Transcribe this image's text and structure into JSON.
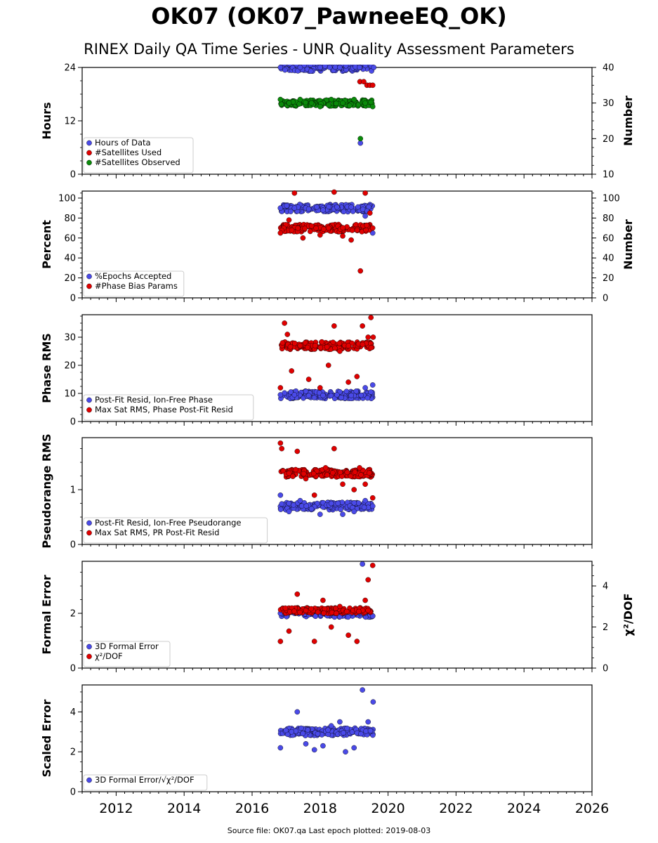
{
  "title": "OK07 (OK07_PawneeEQ_OK)",
  "subtitle": "RINEX Daily QA Time Series - UNR Quality Assessment Parameters",
  "footer": "Source file: OK07.qa Last epoch plotted: 2019-08-03",
  "colors": {
    "blue": "#4a4ae8",
    "red": "#e00000",
    "green": "#0a8a0a"
  },
  "chart_data": {
    "type": "scatter",
    "x_axis": {
      "range": [
        "2011-01-01",
        "2026-01-01"
      ],
      "tick_labels": [
        "2012",
        "2014",
        "2016",
        "2018",
        "2020",
        "2022",
        "2024",
        "2026"
      ]
    },
    "panels": [
      {
        "ylabel": "Hours",
        "ylim": [
          0,
          24
        ],
        "yticks": [
          0,
          12,
          24
        ],
        "ylabel_right": "Number",
        "ylim_right": [
          10,
          40
        ],
        "yticks_right": [
          10,
          20,
          30,
          40
        ],
        "series": [
          {
            "name": "Hours of Data",
            "color": "blue",
            "axis": "left",
            "points": [
              [
                "2016-11-01",
                24
              ],
              [
                "2017-06-01",
                24
              ],
              [
                "2018-01-01",
                24
              ],
              [
                "2018-08-01",
                24
              ],
              [
                "2019-03-01",
                24
              ],
              [
                "2019-03-10",
                7
              ],
              [
                "2019-08-01",
                24
              ]
            ]
          },
          {
            "name": "#Satellites Used",
            "color": "red",
            "axis": "right",
            "points": [
              [
                "2019-03-05",
                36
              ],
              [
                "2019-04-15",
                36
              ],
              [
                "2019-05-20",
                35
              ],
              [
                "2019-06-20",
                35
              ],
              [
                "2019-07-20",
                35
              ]
            ]
          },
          {
            "name": "#Satellites Observed",
            "color": "green",
            "axis": "right",
            "points": [
              [
                "2016-11-01",
                31
              ],
              [
                "2017-02-01",
                30
              ],
              [
                "2017-06-01",
                31
              ],
              [
                "2017-10-01",
                30
              ],
              [
                "2018-01-01",
                29
              ],
              [
                "2018-05-01",
                31
              ],
              [
                "2018-09-01",
                30
              ],
              [
                "2019-01-01",
                31
              ],
              [
                "2019-03-10",
                20
              ],
              [
                "2019-05-01",
                30
              ],
              [
                "2019-07-20",
                29
              ]
            ]
          }
        ]
      },
      {
        "ylabel": "Percent",
        "ylim": [
          0,
          107
        ],
        "yticks": [
          0,
          20,
          40,
          60,
          80,
          100
        ],
        "ylabel_right": "Number",
        "ylim_right": [
          0,
          107
        ],
        "yticks_right": [
          0,
          20,
          40,
          60,
          80,
          100
        ],
        "series": [
          {
            "name": "%Epochs Accepted",
            "color": "blue",
            "axis": "left",
            "points": [
              [
                "2016-11-01",
                90
              ],
              [
                "2017-04-01",
                90
              ],
              [
                "2017-09-01",
                89
              ],
              [
                "2018-02-01",
                88
              ],
              [
                "2018-07-01",
                91
              ],
              [
                "2018-12-01",
                91
              ],
              [
                "2019-05-01",
                82
              ],
              [
                "2019-07-20",
                65
              ]
            ]
          },
          {
            "name": "#Phase Bias Params",
            "color": "red",
            "axis": "right",
            "points": [
              [
                "2016-11-01",
                65
              ],
              [
                "2017-02-01",
                78
              ],
              [
                "2017-04-01",
                105
              ],
              [
                "2017-07-01",
                60
              ],
              [
                "2017-10-01",
                72
              ],
              [
                "2018-01-01",
                63
              ],
              [
                "2018-04-01",
                70
              ],
              [
                "2018-06-01",
                106
              ],
              [
                "2018-09-01",
                62
              ],
              [
                "2018-12-01",
                58
              ],
              [
                "2019-03-10",
                27
              ],
              [
                "2019-05-01",
                105
              ],
              [
                "2019-06-20",
                85
              ],
              [
                "2019-07-20",
                70
              ]
            ]
          }
        ]
      },
      {
        "ylabel": "Phase RMS",
        "ylim": [
          0,
          38
        ],
        "yticks": [
          0,
          10,
          20,
          30
        ],
        "series": [
          {
            "name": "Post-Fit Resid, Ion-Free Phase",
            "color": "blue",
            "axis": "left",
            "points": [
              [
                "2016-11-01",
                9.5
              ],
              [
                "2017-04-01",
                9.5
              ],
              [
                "2017-09-01",
                9.2
              ],
              [
                "2018-02-01",
                9.3
              ],
              [
                "2018-07-01",
                9.5
              ],
              [
                "2018-12-01",
                9.3
              ],
              [
                "2019-05-01",
                12
              ],
              [
                "2019-07-20",
                13
              ]
            ]
          },
          {
            "name": "Max Sat RMS, Phase Post-Fit Resid",
            "color": "red",
            "axis": "left",
            "points": [
              [
                "2016-12-15",
                35
              ],
              [
                "2017-01-15",
                31
              ],
              [
                "2016-11-01",
                12
              ],
              [
                "2017-03-01",
                18
              ],
              [
                "2017-06-01",
                27
              ],
              [
                "2017-09-01",
                15
              ],
              [
                "2018-01-01",
                12
              ],
              [
                "2018-04-01",
                20
              ],
              [
                "2018-06-01",
                34
              ],
              [
                "2018-08-01",
                25
              ],
              [
                "2018-11-01",
                14
              ],
              [
                "2019-02-01",
                16
              ],
              [
                "2019-04-01",
                34
              ],
              [
                "2019-06-01",
                30
              ],
              [
                "2019-07-01",
                37
              ],
              [
                "2019-07-25",
                30
              ]
            ]
          }
        ]
      },
      {
        "ylabel": "Pseudorange RMS",
        "ylim": [
          0,
          1.95
        ],
        "yticks": [
          0,
          1
        ],
        "series": [
          {
            "name": "Post-Fit Resid, Ion-Free Pseudorange",
            "color": "blue",
            "axis": "left",
            "points": [
              [
                "2016-11-01",
                0.9
              ],
              [
                "2017-02-01",
                0.6
              ],
              [
                "2017-06-01",
                0.8
              ],
              [
                "2017-10-01",
                0.65
              ],
              [
                "2018-01-01",
                0.55
              ],
              [
                "2018-05-01",
                0.75
              ],
              [
                "2018-09-01",
                0.55
              ],
              [
                "2019-01-01",
                0.6
              ],
              [
                "2019-05-01",
                0.8
              ],
              [
                "2019-07-20",
                0.7
              ]
            ]
          },
          {
            "name": "Max Sat RMS, PR Post-Fit Resid",
            "color": "red",
            "axis": "left",
            "points": [
              [
                "2016-11-01",
                1.85
              ],
              [
                "2016-11-15",
                1.75
              ],
              [
                "2017-02-01",
                1.3
              ],
              [
                "2017-05-01",
                1.7
              ],
              [
                "2017-08-01",
                1.2
              ],
              [
                "2017-11-01",
                0.9
              ],
              [
                "2018-03-01",
                1.4
              ],
              [
                "2018-06-01",
                1.75
              ],
              [
                "2018-09-01",
                1.1
              ],
              [
                "2019-01-01",
                1.0
              ],
              [
                "2019-03-01",
                1.4
              ],
              [
                "2019-05-01",
                1.1
              ],
              [
                "2019-07-20",
                0.85
              ]
            ]
          }
        ]
      },
      {
        "ylabel": "Formal Error",
        "ylim": [
          0,
          3.9
        ],
        "yticks": [
          0,
          2
        ],
        "ylabel_right": "χ²/DOF",
        "ylim_right": [
          0,
          5.2
        ],
        "yticks_right": [
          0,
          2,
          4
        ],
        "series": [
          {
            "name": "3D Formal Error",
            "color": "blue",
            "axis": "left",
            "points": [
              [
                "2016-11-01",
                2.0
              ],
              [
                "2017-04-01",
                2.0
              ],
              [
                "2017-09-01",
                1.95
              ],
              [
                "2018-02-01",
                2.0
              ],
              [
                "2018-07-01",
                2.0
              ],
              [
                "2018-12-01",
                2.0
              ],
              [
                "2019-04-01",
                3.8
              ],
              [
                "2019-05-01",
                2.0
              ],
              [
                "2019-07-20",
                1.9
              ]
            ]
          },
          {
            "name": "χ²/DOF",
            "color": "red",
            "axis": "right",
            "points": [
              [
                "2016-11-01",
                1.3
              ],
              [
                "2017-02-01",
                1.8
              ],
              [
                "2017-05-01",
                3.6
              ],
              [
                "2017-08-01",
                2.8
              ],
              [
                "2017-11-01",
                1.3
              ],
              [
                "2018-02-01",
                3.3
              ],
              [
                "2018-05-01",
                2.0
              ],
              [
                "2018-08-01",
                3.0
              ],
              [
                "2018-11-01",
                1.6
              ],
              [
                "2019-02-01",
                1.3
              ],
              [
                "2019-05-01",
                3.3
              ],
              [
                "2019-06-01",
                4.3
              ],
              [
                "2019-07-20",
                5.0
              ]
            ]
          }
        ]
      },
      {
        "ylabel": "Scaled Error",
        "ylim": [
          0,
          5.35
        ],
        "yticks": [
          0,
          2,
          4
        ],
        "series": [
          {
            "name": "3D Formal Error/√χ²/DOF",
            "color": "blue",
            "axis": "left",
            "points": [
              [
                "2016-11-01",
                2.2
              ],
              [
                "2017-03-01",
                3.0
              ],
              [
                "2017-05-01",
                4.0
              ],
              [
                "2017-08-01",
                2.4
              ],
              [
                "2017-11-01",
                2.1
              ],
              [
                "2018-02-01",
                2.3
              ],
              [
                "2018-05-01",
                3.3
              ],
              [
                "2018-08-01",
                3.5
              ],
              [
                "2018-10-01",
                2.0
              ],
              [
                "2019-01-01",
                2.2
              ],
              [
                "2019-03-15",
                2.9
              ],
              [
                "2019-04-01",
                5.1
              ],
              [
                "2019-06-01",
                3.5
              ],
              [
                "2019-07-25",
                4.5
              ]
            ]
          }
        ]
      }
    ]
  }
}
